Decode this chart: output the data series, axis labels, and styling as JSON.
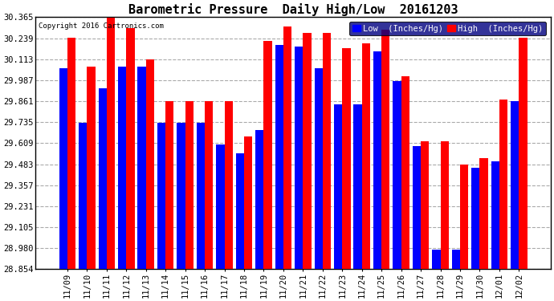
{
  "title": "Barometric Pressure  Daily High/Low  20161203",
  "copyright": "Copyright 2016 Cartronics.com",
  "legend_low": "Low  (Inches/Hg)",
  "legend_high": "High  (Inches/Hg)",
  "dates": [
    "11/09",
    "11/10",
    "11/11",
    "11/12",
    "11/13",
    "11/14",
    "11/15",
    "11/16",
    "11/17",
    "11/18",
    "11/19",
    "11/20",
    "11/21",
    "11/22",
    "11/23",
    "11/24",
    "11/25",
    "11/26",
    "11/27",
    "11/28",
    "11/29",
    "11/30",
    "12/01",
    "12/02"
  ],
  "low": [
    30.06,
    29.73,
    29.94,
    30.07,
    30.07,
    29.73,
    29.73,
    29.73,
    29.6,
    29.55,
    29.69,
    30.2,
    30.19,
    30.06,
    29.84,
    29.84,
    30.16,
    29.98,
    29.59,
    28.97,
    28.97,
    29.46,
    29.5,
    29.86
  ],
  "high": [
    30.24,
    30.07,
    30.36,
    30.3,
    30.11,
    29.86,
    29.86,
    29.86,
    29.86,
    29.65,
    30.22,
    30.31,
    30.27,
    30.27,
    30.18,
    30.21,
    30.29,
    30.01,
    29.62,
    29.62,
    29.48,
    29.52,
    29.87,
    30.24
  ],
  "ylim_min": 28.854,
  "ylim_max": 30.365,
  "yticks": [
    28.854,
    28.98,
    29.105,
    29.231,
    29.357,
    29.483,
    29.609,
    29.735,
    29.861,
    29.987,
    30.113,
    30.239,
    30.365
  ],
  "bar_color_low": "#0000ff",
  "bar_color_high": "#ff0000",
  "bg_color": "#ffffff",
  "grid_color": "#aaaaaa",
  "title_fontsize": 11,
  "tick_fontsize": 7.5,
  "legend_fontsize": 7.5,
  "copyright_fontsize": 6.5,
  "bar_width": 0.42,
  "legend_bg": "#000080"
}
